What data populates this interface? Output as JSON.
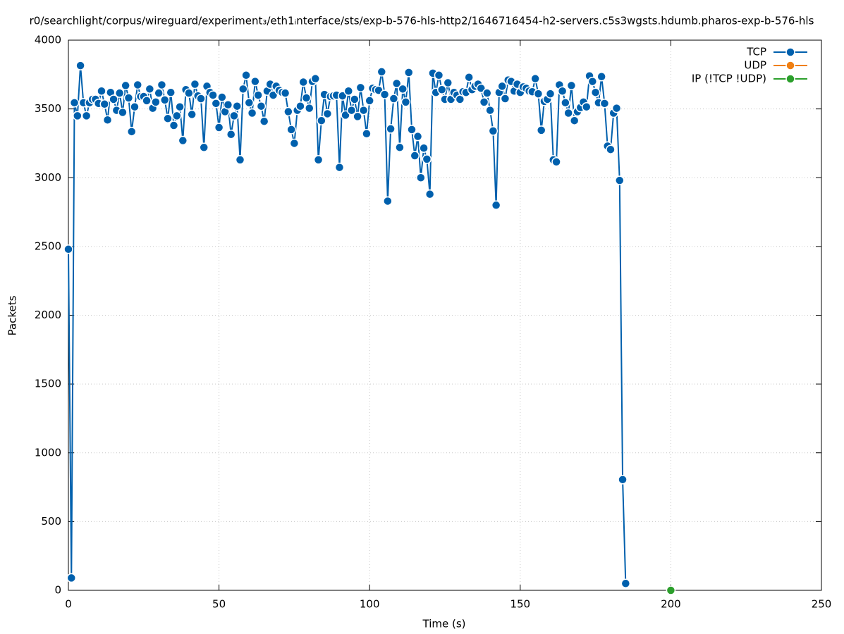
{
  "chart_data": {
    "type": "line",
    "title": "r0/searchlight/corpus/wireguard/experiment₃/eth1ᵢnterface/sts/exp-b-576-hls-http2/1646716454-h2-servers.c5s3wgsts.hdumb.pharos-exp-b-576-hls",
    "x_label": "Time (s)",
    "y_label": "Packets",
    "xlim": [
      0,
      250
    ],
    "xticks": [
      0,
      50,
      100,
      150,
      200,
      250
    ],
    "ylim": [
      0,
      4000
    ],
    "yticks": [
      0,
      500,
      1000,
      1500,
      2000,
      2500,
      3000,
      3500,
      4000
    ],
    "grid": true,
    "legend": "top-right",
    "series": [
      {
        "name": "TCP",
        "color": "#0060ad",
        "x": [
          0,
          1,
          2,
          3,
          4,
          5,
          6,
          7,
          8,
          9,
          10,
          11,
          12,
          13,
          14,
          15,
          16,
          17,
          18,
          19,
          20,
          21,
          22,
          23,
          24,
          25,
          26,
          27,
          28,
          29,
          30,
          31,
          32,
          33,
          34,
          35,
          36,
          37,
          38,
          39,
          40,
          41,
          42,
          43,
          44,
          45,
          46,
          47,
          48,
          49,
          50,
          51,
          52,
          53,
          54,
          55,
          56,
          57,
          58,
          59,
          60,
          61,
          62,
          63,
          64,
          65,
          66,
          67,
          68,
          69,
          70,
          71,
          72,
          73,
          74,
          75,
          76,
          77,
          78,
          79,
          80,
          81,
          82,
          83,
          84,
          85,
          86,
          87,
          88,
          89,
          90,
          91,
          92,
          93,
          94,
          95,
          96,
          97,
          98,
          99,
          100,
          101,
          102,
          103,
          104,
          105,
          106,
          107,
          108,
          109,
          110,
          111,
          112,
          113,
          114,
          115,
          116,
          117,
          118,
          119,
          120,
          121,
          122,
          123,
          124,
          125,
          126,
          127,
          128,
          129,
          130,
          131,
          132,
          133,
          134,
          135,
          136,
          137,
          138,
          139,
          140,
          141,
          142,
          143,
          144,
          145,
          146,
          147,
          148,
          149,
          150,
          151,
          152,
          153,
          154,
          155,
          156,
          157,
          158,
          159,
          160,
          161,
          162,
          163,
          164,
          165,
          166,
          167,
          168,
          169,
          170,
          171,
          172,
          173,
          174,
          175,
          176,
          177,
          178,
          179,
          180,
          181,
          182,
          183,
          184,
          185
        ],
        "values": [
          2480,
          90,
          3545,
          3450,
          3815,
          3545,
          3450,
          3545,
          3570,
          3570,
          3540,
          3630,
          3535,
          3420,
          3620,
          3570,
          3490,
          3615,
          3475,
          3670,
          3580,
          3335,
          3515,
          3675,
          3590,
          3590,
          3560,
          3645,
          3505,
          3550,
          3615,
          3675,
          3565,
          3430,
          3620,
          3380,
          3450,
          3515,
          3270,
          3640,
          3615,
          3460,
          3680,
          3595,
          3575,
          3220,
          3665,
          3620,
          3600,
          3540,
          3365,
          3585,
          3480,
          3530,
          3315,
          3450,
          3520,
          3130,
          3645,
          3745,
          3545,
          3470,
          3700,
          3600,
          3520,
          3410,
          3630,
          3680,
          3600,
          3665,
          3635,
          3620,
          3615,
          3480,
          3350,
          3250,
          3490,
          3520,
          3695,
          3580,
          3505,
          3700,
          3720,
          3130,
          3415,
          3605,
          3465,
          3590,
          3595,
          3600,
          3075,
          3595,
          3455,
          3630,
          3490,
          3570,
          3445,
          3655,
          3490,
          3320,
          3560,
          3650,
          3640,
          3635,
          3770,
          3605,
          2830,
          3355,
          3575,
          3685,
          3220,
          3645,
          3550,
          3765,
          3350,
          3160,
          3300,
          3000,
          3215,
          3135,
          2880,
          3760,
          3620,
          3745,
          3640,
          3570,
          3690,
          3570,
          3620,
          3600,
          3570,
          3625,
          3620,
          3730,
          3640,
          3665,
          3680,
          3650,
          3550,
          3615,
          3490,
          3340,
          2800,
          3620,
          3665,
          3575,
          3710,
          3700,
          3630,
          3680,
          3620,
          3660,
          3650,
          3630,
          3625,
          3720,
          3610,
          3345,
          3555,
          3570,
          3610,
          3130,
          3115,
          3675,
          3630,
          3545,
          3470,
          3670,
          3415,
          3480,
          3510,
          3550,
          3515,
          3740,
          3700,
          3620,
          3545,
          3735,
          3540,
          3230,
          3205,
          3470,
          3505,
          2980,
          805,
          50
        ]
      },
      {
        "name": "UDP",
        "color": "#f07f12",
        "x": [],
        "values": []
      },
      {
        "name": "IP (!TCP  !UDP)",
        "color": "#2c9f2c",
        "x": [
          200
        ],
        "values": [
          0
        ]
      }
    ]
  }
}
